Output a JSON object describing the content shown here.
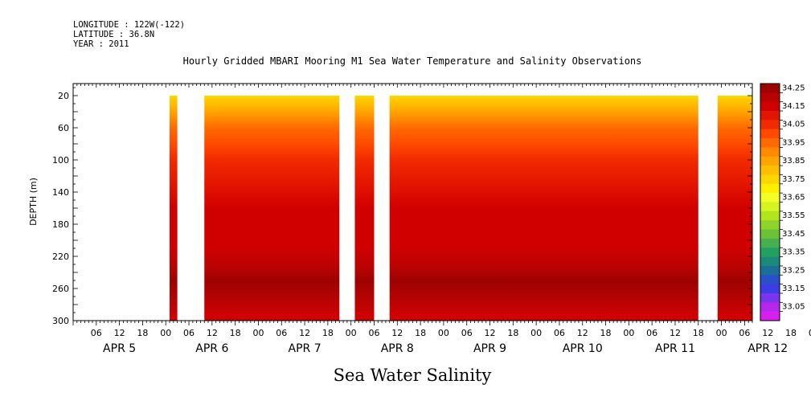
{
  "header": {
    "longitude": "LONGITUDE : 122W(-122)",
    "latitude": "LATITUDE : 36.8N",
    "year": "YEAR : 2011"
  },
  "chart_title": "Hourly Gridded MBARI Mooring M1 Sea Water Temperature and Salinity Observations",
  "bottom_title": "Sea Water Salinity",
  "chart_data": {
    "type": "heatmap",
    "variable": "Sea Water Salinity",
    "ylabel": "DEPTH (m)",
    "y_axis_inverted": true,
    "ylim": [
      300,
      5
    ],
    "y_ticks": [
      20,
      60,
      100,
      140,
      180,
      220,
      260,
      300
    ],
    "x_start": "APR 5 00:00",
    "x_end": "APR 12 08:00",
    "x_hour_ticks": [
      "06",
      "12",
      "18",
      "00",
      "06",
      "12",
      "18",
      "00",
      "06",
      "12",
      "18",
      "00",
      "06",
      "12",
      "18",
      "00",
      "06",
      "12",
      "18",
      "00",
      "06",
      "12",
      "18",
      "00",
      "06",
      "12",
      "18",
      "00",
      "06",
      "12",
      "18",
      "00",
      "06"
    ],
    "x_day_labels": [
      "APR 5",
      "APR 6",
      "APR 7",
      "APR 8",
      "APR 9",
      "APR 10",
      "APR 11",
      "APR 12"
    ],
    "data_gaps": [
      {
        "from": "APR 5 00:00",
        "to": "APR 6 01:00"
      },
      {
        "from": "APR 6 03:00",
        "to": "APR 6 10:00"
      },
      {
        "from": "APR 7 21:00",
        "to": "APR 8 01:00"
      },
      {
        "from": "APR 8 06:00",
        "to": "APR 8 10:00"
      },
      {
        "from": "APR 11 18:00",
        "to": "APR 11 23:00"
      }
    ],
    "data_depth_range": [
      20,
      300
    ],
    "salinity_profile": [
      {
        "depth": 20,
        "value": 33.75
      },
      {
        "depth": 40,
        "value": 33.85
      },
      {
        "depth": 60,
        "value": 33.95
      },
      {
        "depth": 80,
        "value": 34.0
      },
      {
        "depth": 100,
        "value": 34.05
      },
      {
        "depth": 130,
        "value": 34.1
      },
      {
        "depth": 160,
        "value": 34.15
      },
      {
        "depth": 210,
        "value": 34.18
      },
      {
        "depth": 235,
        "value": 34.2
      },
      {
        "depth": 250,
        "value": 34.27
      },
      {
        "depth": 275,
        "value": 34.22
      },
      {
        "depth": 295,
        "value": 34.18
      }
    ],
    "colorbar": {
      "labels": [
        "34.25",
        "34.20",
        "34.15",
        "34.10",
        "34.05",
        "34.00",
        "33.95",
        "33.90",
        "33.85",
        "33.80",
        "33.75",
        "33.70",
        "33.65",
        "33.60",
        "33.55",
        "33.50",
        "33.45",
        "33.40",
        "33.35",
        "33.30",
        "33.25",
        "33.20",
        "33.15",
        "33.10",
        "33.05"
      ],
      "labeled": [
        "34.25",
        "34.15",
        "34.05",
        "33.95",
        "33.85",
        "33.75",
        "33.65",
        "33.55",
        "33.45",
        "33.35",
        "33.25",
        "33.15",
        "33.05"
      ],
      "colors": [
        "#9d0202",
        "#b80303",
        "#d10000",
        "#e41500",
        "#f22a00",
        "#ff4a00",
        "#ff6a00",
        "#ff8a00",
        "#ffa400",
        "#ffbe00",
        "#ffd700",
        "#fff000",
        "#f2ff26",
        "#d4f520",
        "#b2e61c",
        "#8fd42a",
        "#6cc236",
        "#46b050",
        "#23a060",
        "#1a8a7a",
        "#1a6f98",
        "#2850c8",
        "#3c3ce6",
        "#7a34ee",
        "#b428ee",
        "#d820ee"
      ]
    },
    "grid": false
  }
}
